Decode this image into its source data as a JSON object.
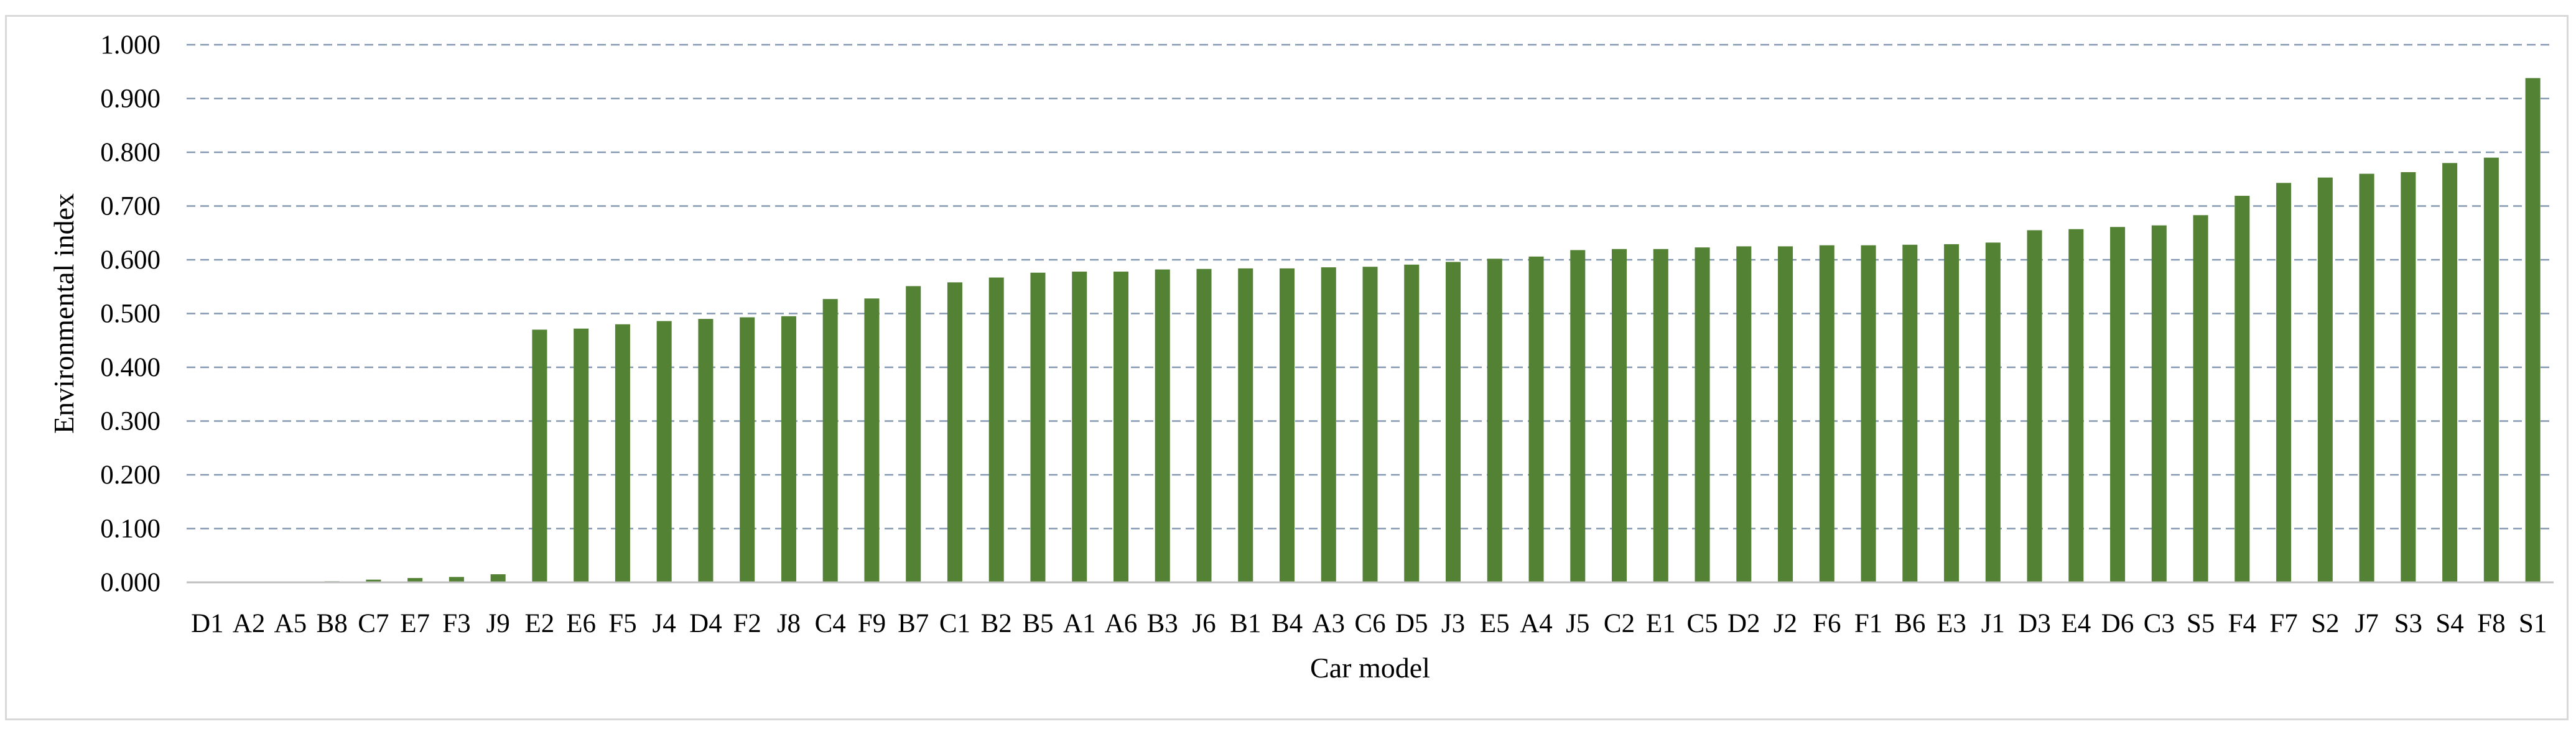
{
  "chart_data": {
    "type": "bar",
    "xlabel": "Car model",
    "ylabel": "Environmental index",
    "ylim": [
      0,
      1
    ],
    "yticks": [
      "0.000",
      "0.100",
      "0.200",
      "0.300",
      "0.400",
      "0.500",
      "0.600",
      "0.700",
      "0.800",
      "0.900",
      "1.000"
    ],
    "grid": true,
    "bar_color": "#548235",
    "grid_color": "#8497b0",
    "categories": [
      "D1",
      "A2",
      "A5",
      "B8",
      "C7",
      "E7",
      "F3",
      "J9",
      "E2",
      "E6",
      "F5",
      "J4",
      "D4",
      "F2",
      "J8",
      "C4",
      "F9",
      "B7",
      "C1",
      "B2",
      "B5",
      "A1",
      "A6",
      "B3",
      "J6",
      "B1",
      "B4",
      "A3",
      "C6",
      "D5",
      "J3",
      "E5",
      "A4",
      "J5",
      "C2",
      "E1",
      "C5",
      "D2",
      "J2",
      "F6",
      "F1",
      "B6",
      "E3",
      "J1",
      "D3",
      "E4",
      "D6",
      "C3",
      "S5",
      "F4",
      "F7",
      "S2",
      "J7",
      "S3",
      "S4",
      "F8",
      "S1"
    ],
    "values": [
      0.0,
      0.0,
      0.0,
      0.002,
      0.005,
      0.008,
      0.01,
      0.015,
      0.47,
      0.472,
      0.48,
      0.486,
      0.49,
      0.493,
      0.495,
      0.527,
      0.528,
      0.551,
      0.558,
      0.567,
      0.576,
      0.578,
      0.578,
      0.582,
      0.583,
      0.584,
      0.584,
      0.586,
      0.587,
      0.591,
      0.596,
      0.602,
      0.606,
      0.618,
      0.62,
      0.62,
      0.623,
      0.625,
      0.625,
      0.627,
      0.627,
      0.628,
      0.629,
      0.632,
      0.655,
      0.657,
      0.661,
      0.664,
      0.683,
      0.719,
      0.743,
      0.753,
      0.76,
      0.763,
      0.78,
      0.79,
      0.938
    ]
  }
}
